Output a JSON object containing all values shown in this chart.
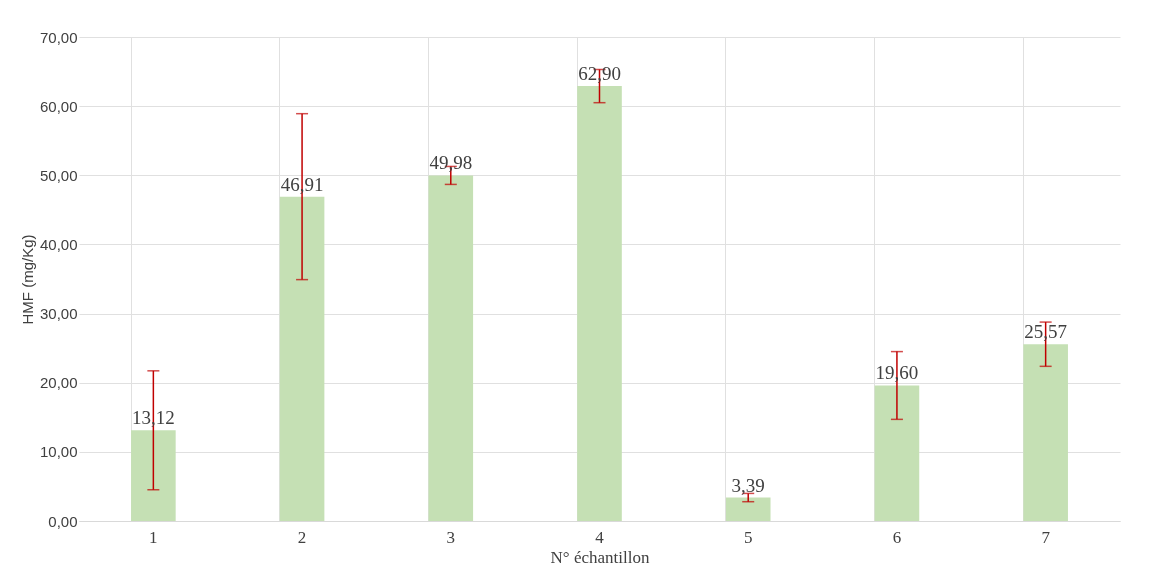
{
  "chart_data": {
    "type": "bar",
    "xlabel": "N° échantillon",
    "ylabel": "HMF (mg/Kg)",
    "categories": [
      "1",
      "2",
      "3",
      "4",
      "5",
      "6",
      "7"
    ],
    "values": [
      13.12,
      46.91,
      49.98,
      62.9,
      3.39,
      19.6,
      25.57
    ],
    "value_labels": [
      "13,12",
      "46,91",
      "49,98",
      "62,90",
      "3,39",
      "19,60",
      "25,57"
    ],
    "errors": [
      8.6,
      12,
      1.3,
      2.4,
      0.6,
      4.9,
      3.2
    ],
    "color": "#c5e0b4",
    "ylim": [
      0,
      70
    ],
    "yticks": [
      {
        "value": 0,
        "label": "0,00"
      },
      {
        "value": 10,
        "label": "10,00"
      },
      {
        "value": 20,
        "label": "20,00"
      },
      {
        "value": 30,
        "label": "30,00"
      },
      {
        "value": 40,
        "label": "40,00"
      },
      {
        "value": 50,
        "label": "50,00"
      },
      {
        "value": 60,
        "label": "60,00"
      },
      {
        "value": 70,
        "label": "70,00"
      }
    ],
    "grid": true
  }
}
